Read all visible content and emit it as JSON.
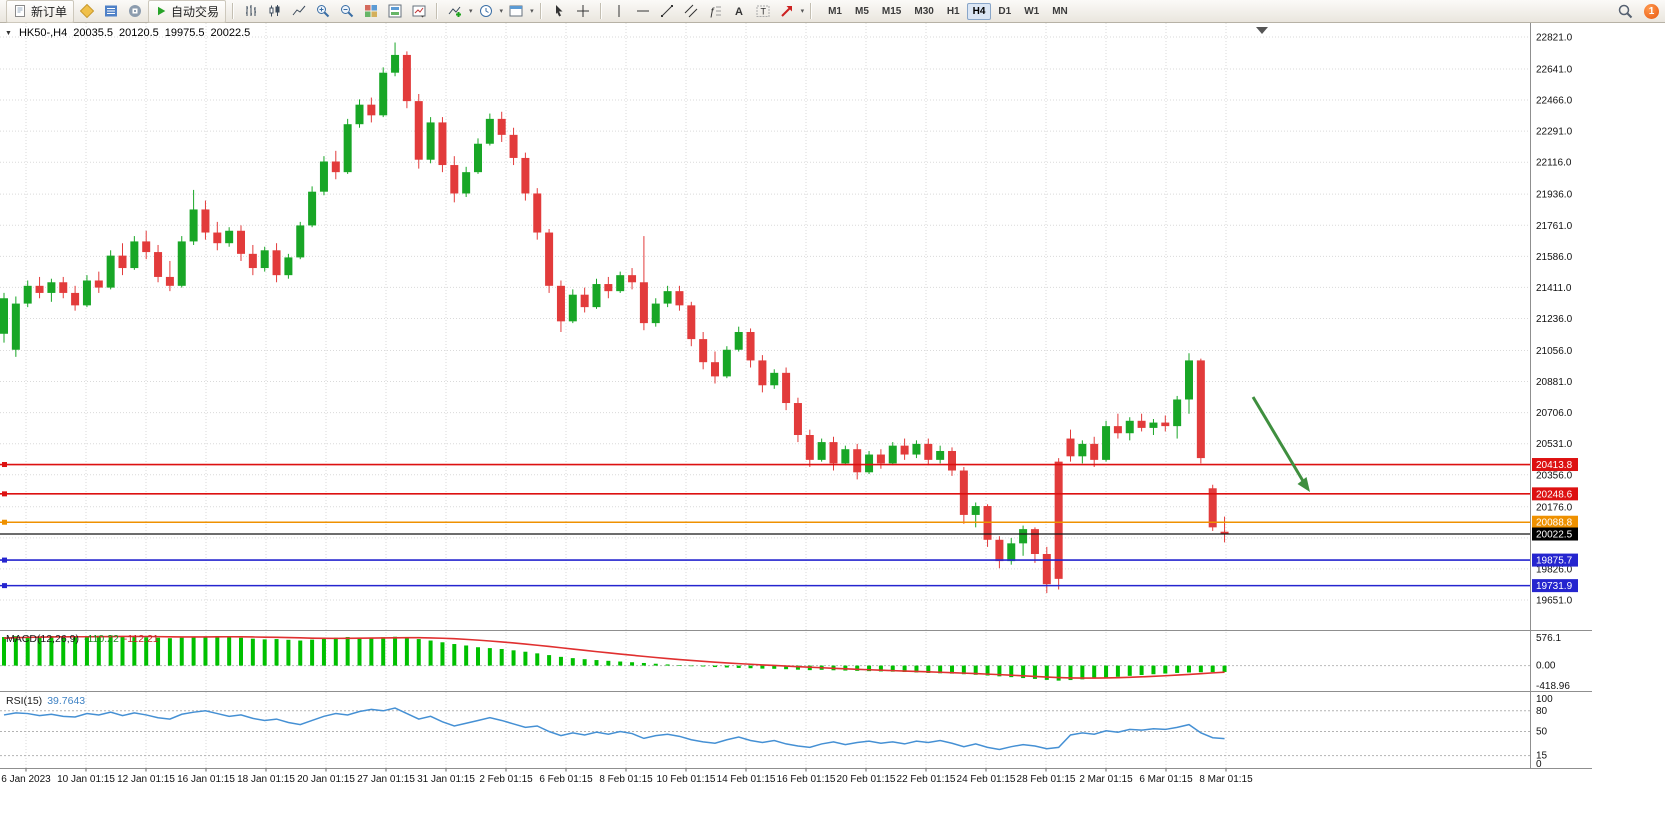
{
  "toolbar": {
    "new_order_label": "新订单",
    "autotrade_label": "自动交易",
    "timeframes": [
      "M1",
      "M5",
      "M15",
      "M30",
      "H1",
      "H4",
      "D1",
      "W1",
      "MN"
    ],
    "active_timeframe": "H4",
    "notification_count": "1",
    "caret_glyph": "▾",
    "icon_names": [
      "new-order-icon",
      "mql-wizard-icon",
      "market-watch-icon",
      "community-icon",
      "autotrade-play-icon",
      "bar-chart-icon",
      "candlestick-chart-icon",
      "line-chart-icon",
      "zoom-in-icon",
      "zoom-out-icon",
      "tile-windows-icon",
      "arrange-windows-icon",
      "chart-shift-icon",
      "indicators-icon",
      "periods-clock-icon",
      "templates-icon",
      "cursor-icon",
      "crosshair-icon",
      "vertical-line-icon",
      "horizontal-line-icon",
      "trendline-icon",
      "equidistant-channel-icon",
      "fibonacci-icon",
      "text-icon",
      "text-label-icon",
      "arrows-shapes-icon",
      "search-icon"
    ]
  },
  "chart_header": {
    "collapse_glyph": "▼",
    "symbol": "HK50-,H4",
    "open": "20035.5",
    "high": "20120.5",
    "low": "19975.5",
    "close": "20022.5"
  },
  "colors": {
    "bull": "#18a626",
    "bear": "#e23b3b",
    "macd_hist": "#00c000",
    "macd_signal": "#e03030",
    "rsi_line": "#4590d4",
    "resistance": "#dd1111",
    "pivot": "#ef9100",
    "support": "#2525cf",
    "current": "#000000"
  },
  "chart_data": {
    "type": "candlestick",
    "symbol": "HK50-",
    "timeframe": "H4",
    "price_axis": [
      22821,
      22641,
      22466,
      22291,
      22116,
      21936,
      21761,
      21586,
      21411,
      21236,
      21056,
      20881,
      20706,
      20531,
      20356,
      20176,
      20001,
      19826,
      19651
    ],
    "date_labels": [
      "6 Jan 2023",
      "10 Jan 01:15",
      "12 Jan 01:15",
      "16 Jan 01:15",
      "18 Jan 01:15",
      "20 Jan 01:15",
      "27 Jan 01:15",
      "31 Jan 01:15",
      "2 Feb 01:15",
      "6 Feb 01:15",
      "8 Feb 01:15",
      "10 Feb 01:15",
      "14 Feb 01:15",
      "16 Feb 01:15",
      "20 Feb 01:15",
      "22 Feb 01:15",
      "24 Feb 01:15",
      "28 Feb 01:15",
      "2 Mar 01:15",
      "6 Mar 01:15",
      "8 Mar 01:15"
    ],
    "candles": [
      [
        21150,
        21380,
        21100,
        21350
      ],
      [
        21060,
        21360,
        21020,
        21320
      ],
      [
        21320,
        21450,
        21300,
        21420
      ],
      [
        21420,
        21470,
        21350,
        21380
      ],
      [
        21380,
        21460,
        21330,
        21440
      ],
      [
        21440,
        21470,
        21350,
        21380
      ],
      [
        21380,
        21420,
        21280,
        21310
      ],
      [
        21310,
        21480,
        21300,
        21450
      ],
      [
        21450,
        21500,
        21380,
        21410
      ],
      [
        21410,
        21620,
        21400,
        21590
      ],
      [
        21590,
        21660,
        21480,
        21520
      ],
      [
        21520,
        21700,
        21510,
        21670
      ],
      [
        21670,
        21730,
        21570,
        21610
      ],
      [
        21610,
        21650,
        21440,
        21470
      ],
      [
        21470,
        21560,
        21390,
        21420
      ],
      [
        21420,
        21700,
        21410,
        21670
      ],
      [
        21670,
        21960,
        21650,
        21850
      ],
      [
        21850,
        21900,
        21680,
        21720
      ],
      [
        21720,
        21780,
        21620,
        21660
      ],
      [
        21660,
        21750,
        21640,
        21730
      ],
      [
        21730,
        21760,
        21560,
        21600
      ],
      [
        21600,
        21650,
        21480,
        21520
      ],
      [
        21520,
        21640,
        21500,
        21620
      ],
      [
        21620,
        21660,
        21440,
        21480
      ],
      [
        21480,
        21600,
        21460,
        21580
      ],
      [
        21580,
        21780,
        21570,
        21760
      ],
      [
        21760,
        21980,
        21750,
        21950
      ],
      [
        21950,
        22150,
        21930,
        22120
      ],
      [
        22120,
        22180,
        22020,
        22060
      ],
      [
        22060,
        22360,
        22050,
        22330
      ],
      [
        22330,
        22470,
        22310,
        22440
      ],
      [
        22440,
        22480,
        22340,
        22380
      ],
      [
        22380,
        22650,
        22370,
        22620
      ],
      [
        22620,
        22790,
        22600,
        22720
      ],
      [
        22720,
        22740,
        22420,
        22460
      ],
      [
        22460,
        22500,
        22080,
        22130
      ],
      [
        22130,
        22370,
        22110,
        22340
      ],
      [
        22340,
        22370,
        22060,
        22100
      ],
      [
        22100,
        22150,
        21890,
        21940
      ],
      [
        21940,
        22090,
        21920,
        22060
      ],
      [
        22060,
        22250,
        22050,
        22220
      ],
      [
        22220,
        22390,
        22210,
        22360
      ],
      [
        22360,
        22400,
        22230,
        22270
      ],
      [
        22270,
        22310,
        22100,
        22140
      ],
      [
        22140,
        22170,
        21900,
        21940
      ],
      [
        21940,
        21970,
        21680,
        21720
      ],
      [
        21720,
        21740,
        21380,
        21420
      ],
      [
        21420,
        21450,
        21160,
        21220
      ],
      [
        21220,
        21400,
        21210,
        21370
      ],
      [
        21370,
        21410,
        21270,
        21300
      ],
      [
        21300,
        21460,
        21290,
        21430
      ],
      [
        21430,
        21470,
        21350,
        21390
      ],
      [
        21390,
        21500,
        21380,
        21480
      ],
      [
        21480,
        21520,
        21400,
        21440
      ],
      [
        21440,
        21700,
        21170,
        21210
      ],
      [
        21210,
        21350,
        21190,
        21320
      ],
      [
        21320,
        21420,
        21300,
        21390
      ],
      [
        21390,
        21420,
        21280,
        21310
      ],
      [
        21310,
        21330,
        21080,
        21120
      ],
      [
        21120,
        21160,
        20950,
        20990
      ],
      [
        20990,
        21050,
        20870,
        20910
      ],
      [
        20910,
        21080,
        20900,
        21060
      ],
      [
        21060,
        21190,
        21050,
        21160
      ],
      [
        21160,
        21180,
        20960,
        21000
      ],
      [
        21000,
        21030,
        20820,
        20860
      ],
      [
        20860,
        20950,
        20840,
        20930
      ],
      [
        20930,
        20960,
        20720,
        20760
      ],
      [
        20760,
        20790,
        20540,
        20580
      ],
      [
        20580,
        20610,
        20400,
        20440
      ],
      [
        20440,
        20560,
        20430,
        20540
      ],
      [
        20540,
        20570,
        20380,
        20420
      ],
      [
        20420,
        20520,
        20410,
        20500
      ],
      [
        20500,
        20530,
        20330,
        20370
      ],
      [
        20370,
        20490,
        20360,
        20470
      ],
      [
        20470,
        20500,
        20390,
        20420
      ],
      [
        20420,
        20540,
        20410,
        20520
      ],
      [
        20520,
        20560,
        20440,
        20470
      ],
      [
        20470,
        20550,
        20450,
        20530
      ],
      [
        20530,
        20560,
        20410,
        20440
      ],
      [
        20440,
        20520,
        20420,
        20490
      ],
      [
        20490,
        20510,
        20350,
        20380
      ],
      [
        20380,
        20400,
        20080,
        20130
      ],
      [
        20130,
        20200,
        20060,
        20180
      ],
      [
        20180,
        20190,
        19950,
        19990
      ],
      [
        19990,
        20010,
        19830,
        19870
      ],
      [
        19870,
        20000,
        19850,
        19970
      ],
      [
        19970,
        20070,
        19900,
        20050
      ],
      [
        20050,
        20060,
        19860,
        19910
      ],
      [
        19910,
        19950,
        19690,
        19740
      ],
      [
        20430,
        20450,
        19710,
        19770
      ],
      [
        20560,
        20610,
        20430,
        20460
      ],
      [
        20460,
        20550,
        20420,
        20530
      ],
      [
        20530,
        20570,
        20400,
        20440
      ],
      [
        20440,
        20660,
        20430,
        20630
      ],
      [
        20630,
        20700,
        20560,
        20590
      ],
      [
        20590,
        20680,
        20550,
        20660
      ],
      [
        20660,
        20700,
        20600,
        20620
      ],
      [
        20620,
        20670,
        20580,
        20650
      ],
      [
        20650,
        20690,
        20600,
        20630
      ],
      [
        20630,
        20800,
        20560,
        20780
      ],
      [
        20780,
        21040,
        20700,
        21000
      ],
      [
        21000,
        21010,
        20420,
        20450
      ],
      [
        20280,
        20300,
        20040,
        20060
      ],
      [
        20035.5,
        20120.5,
        19975.5,
        20022.5
      ]
    ],
    "horizontal_lines": [
      {
        "price": 20413.8,
        "label": "20413.8",
        "color": "#dd1111"
      },
      {
        "price": 20248.6,
        "label": "20248.6",
        "color": "#dd1111"
      },
      {
        "price": 20088.8,
        "label": "20088.8",
        "color": "#ef9100"
      },
      {
        "price": 19875.7,
        "label": "19875.7",
        "color": "#2525cf"
      },
      {
        "price": 19731.9,
        "label": "19731.9",
        "color": "#2525cf"
      }
    ],
    "current_price": {
      "price": 20022.5,
      "label": "20022.5"
    },
    "indicators": {
      "macd": {
        "label": "MACD(12,26,9)",
        "main_value": "-110.22",
        "signal_value": "-112.21",
        "axis_labels": [
          "576.1",
          "0.00",
          "-418.96"
        ],
        "histogram": [
          490,
          505,
          498,
          502,
          508,
          500,
          492,
          500,
          512,
          518,
          508,
          496,
          486,
          478,
          470,
          480,
          492,
          500,
          508,
          495,
          478,
          462,
          450,
          455,
          442,
          430,
          445,
          462,
          478,
          490,
          480,
          470,
          485,
          495,
          480,
          455,
          430,
          400,
          370,
          345,
          315,
          300,
          285,
          262,
          238,
          210,
          180,
          150,
          128,
          110,
          95,
          82,
          70,
          58,
          45,
          32,
          20,
          8,
          -5,
          -15,
          -25,
          -32,
          -40,
          -45,
          -52,
          -55,
          -62,
          -70,
          -78,
          -72,
          -80,
          -85,
          -90,
          -95,
          -100,
          -104,
          -110,
          -118,
          -126,
          -132,
          -138,
          -148,
          -158,
          -170,
          -184,
          -198,
          -214,
          -228,
          -245,
          -258,
          -248,
          -236,
          -222,
          -208,
          -192,
          -176,
          -162,
          -148,
          -136,
          -126,
          -118,
          -114,
          -112,
          -110.22
        ],
        "signal": [
          470,
          478,
          484,
          488,
          492,
          494,
          495,
          495,
          496,
          498,
          500,
          500,
          499,
          497,
          494,
          492,
          491,
          492,
          494,
          495,
          494,
          491,
          488,
          485,
          481,
          476,
          471,
          468,
          467,
          468,
          470,
          472,
          474,
          477,
          479,
          478,
          475,
          469,
          461,
          450,
          437,
          422,
          406,
          388,
          369,
          349,
          328,
          306,
          284,
          262,
          240,
          219,
          198,
          178,
          158,
          139,
          121,
          104,
          88,
          73,
          59,
          46,
          34,
          23,
          12,
          2,
          -8,
          -18,
          -28,
          -37,
          -46,
          -55,
          -63,
          -71,
          -79,
          -86,
          -93,
          -100,
          -107,
          -114,
          -121,
          -129,
          -137,
          -146,
          -155,
          -165,
          -175,
          -186,
          -197,
          -206,
          -211,
          -213,
          -213,
          -211,
          -207,
          -201,
          -193,
          -184,
          -174,
          -163,
          -151,
          -138,
          -125,
          -112.21
        ]
      },
      "rsi": {
        "label": "RSI(15)",
        "value": "39.7643",
        "axis_labels": [
          "100",
          "80",
          "50",
          "15",
          "0"
        ],
        "levels": [
          80,
          50,
          15
        ],
        "values": [
          74,
          77,
          76,
          73,
          75,
          72,
          71,
          76,
          74,
          78,
          73,
          77,
          74,
          70,
          68,
          75,
          78,
          80,
          76,
          72,
          74,
          69,
          66,
          68,
          63,
          60,
          66,
          72,
          76,
          74,
          79,
          82,
          80,
          84,
          76,
          68,
          72,
          64,
          58,
          62,
          66,
          70,
          66,
          61,
          56,
          58,
          50,
          44,
          48,
          45,
          49,
          46,
          50,
          47,
          40,
          44,
          46,
          43,
          38,
          35,
          33,
          38,
          42,
          37,
          34,
          37,
          32,
          29,
          27,
          32,
          35,
          31,
          34,
          36,
          33,
          35,
          32,
          36,
          34,
          37,
          33,
          28,
          32,
          27,
          24,
          28,
          31,
          29,
          25,
          27,
          45,
          48,
          46,
          51,
          49,
          53,
          52,
          54,
          53,
          56,
          60,
          48,
          41,
          39.76
        ]
      }
    },
    "annotations": {
      "arrow": {
        "type": "arrow",
        "direction": "down-right",
        "color": "#3f8f3f"
      }
    }
  }
}
